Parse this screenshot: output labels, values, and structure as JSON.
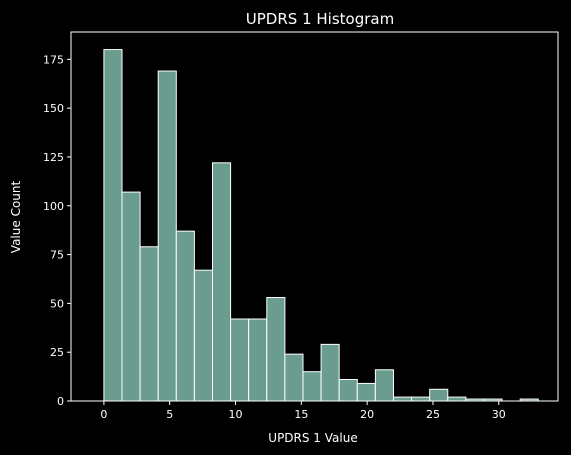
{
  "chart_data": {
    "type": "bar",
    "title": "UPDRS 1 Histogram",
    "xlabel": "UPDRS 1 Value",
    "ylabel": "Value Count",
    "xlim": [
      -2.5,
      34.5
    ],
    "ylim": [
      0,
      189
    ],
    "x_ticks": [
      0,
      5,
      10,
      15,
      20,
      25,
      30
    ],
    "y_ticks": [
      0,
      25,
      50,
      75,
      100,
      125,
      150,
      175
    ],
    "bin_edges": [
      0,
      1.375,
      2.75,
      4.125,
      5.5,
      6.875,
      8.25,
      9.625,
      11,
      12.375,
      13.75,
      15.125,
      16.5,
      17.875,
      19.25,
      20.625,
      22,
      23.375,
      24.75,
      26.125,
      27.5,
      28.875,
      30.25,
      31.625,
      33
    ],
    "counts": [
      180,
      107,
      79,
      169,
      87,
      67,
      122,
      42,
      42,
      53,
      24,
      15,
      29,
      11,
      9,
      16,
      2,
      2,
      6,
      2,
      1,
      1,
      0,
      1
    ],
    "bar_color": "#6a9c8f",
    "edge_color": "#ffffff",
    "background": "#000000",
    "grid": false
  }
}
